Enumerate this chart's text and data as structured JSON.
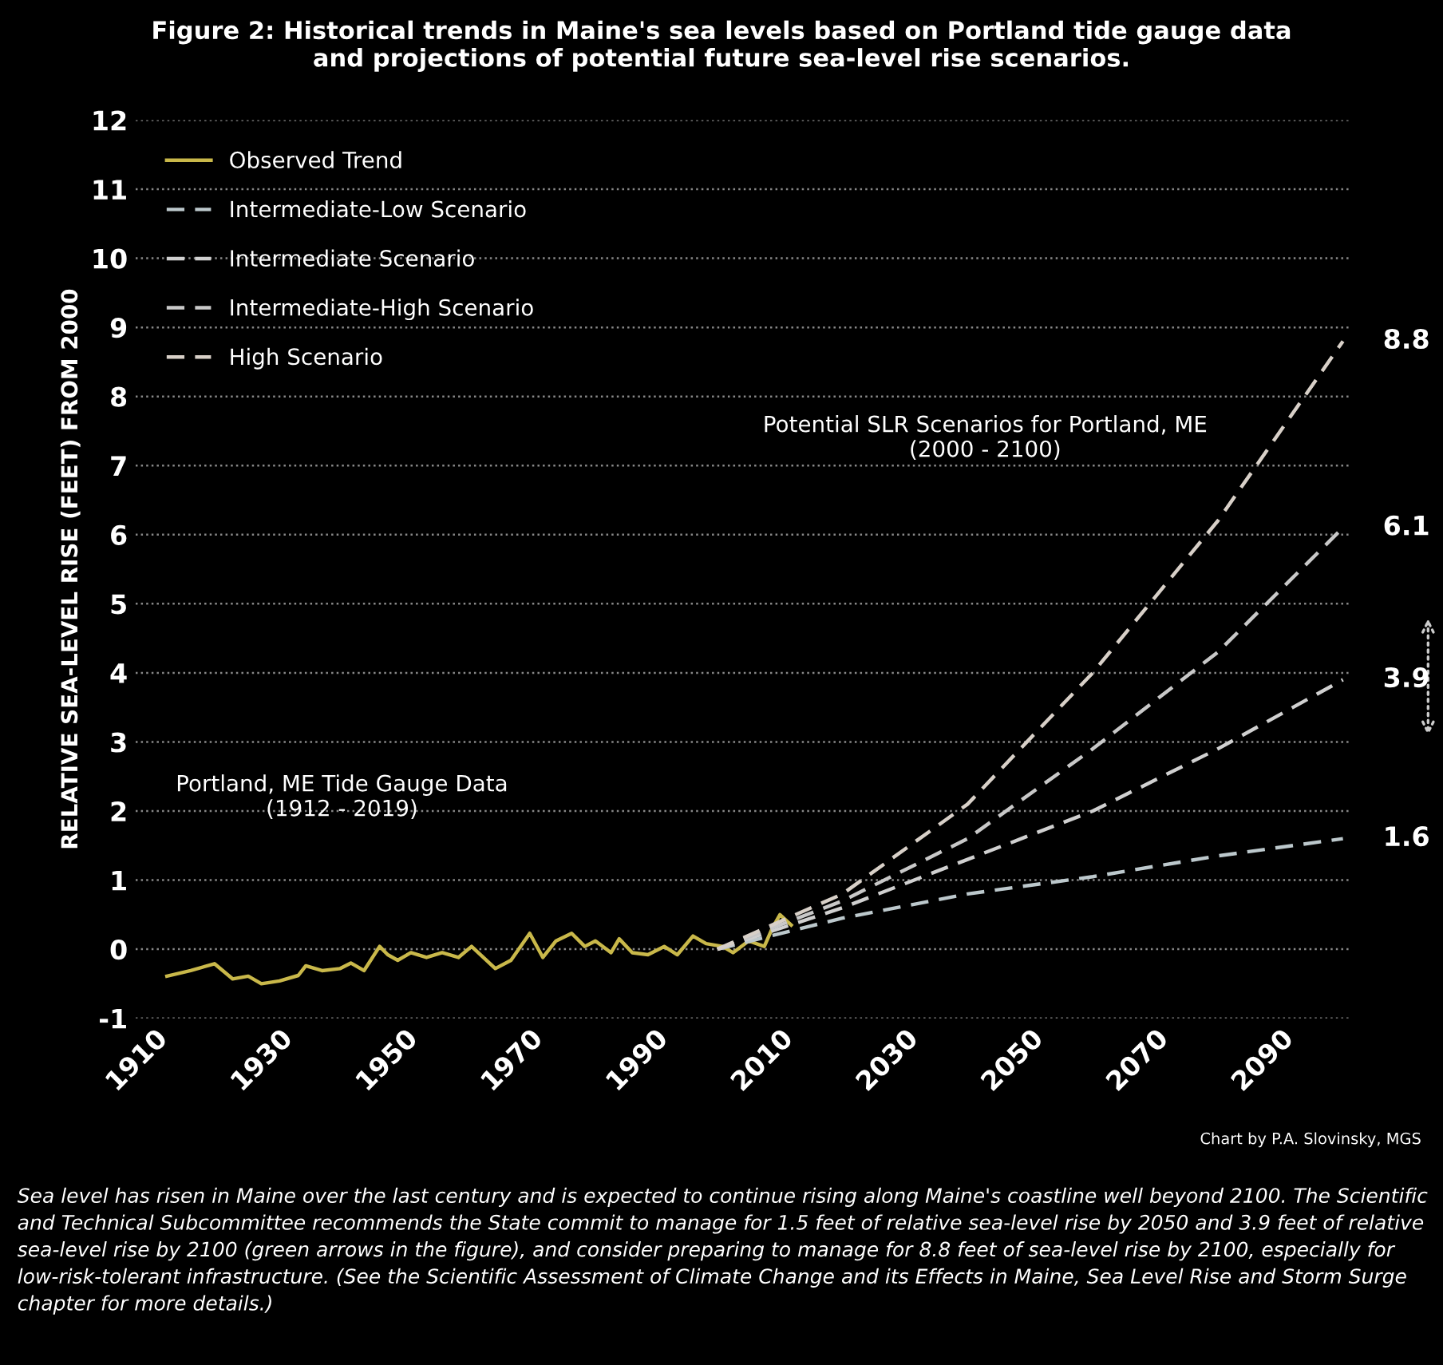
{
  "chart_data": {
    "type": "line",
    "title": "Figure 2: Historical trends in Maine's sea levels based on Portland tide gauge data\nand projections of potential future sea-level rise scenarios.",
    "ylabel": "RELATIVE SEA-LEVEL RISE (FEET) FROM 2000",
    "xlim": [
      1907,
      2101
    ],
    "xticks": [
      1910,
      1930,
      1950,
      1970,
      1990,
      2010,
      2030,
      2050,
      2070,
      2090
    ],
    "ylim": [
      -1,
      12
    ],
    "yticks": [
      -1,
      0,
      1,
      2,
      3,
      4,
      5,
      6,
      7,
      8,
      9,
      10,
      11,
      12
    ],
    "grid": "y",
    "legend": "top left",
    "series": [
      {
        "name": "Observed Trend",
        "color": "#c9b84a",
        "line_style": "solid",
        "x": [
          1912,
          1915.8,
          1919.6,
          1922.5,
          1925,
          1927.1,
          1930,
          1933,
          1934.2,
          1936.8,
          1939.7,
          1941.4,
          1943.5,
          1946,
          1947.3,
          1948.9,
          1951,
          1953.5,
          1956,
          1958.6,
          1960.7,
          1964.5,
          1967,
          1970,
          1972.1,
          1974.2,
          1976.7,
          1978.8,
          1980.5,
          1983,
          1984.3,
          1986.4,
          1988.9,
          1991.5,
          1993.6,
          1996.1,
          1998.2,
          2000.8,
          2002.5,
          2005,
          2007.5,
          2008.8,
          2010,
          2011.8
        ],
        "values": [
          -0.39,
          -0.31,
          -0.21,
          -0.43,
          -0.39,
          -0.5,
          -0.46,
          -0.38,
          -0.24,
          -0.31,
          -0.28,
          -0.2,
          -0.31,
          0.04,
          -0.08,
          -0.16,
          -0.05,
          -0.12,
          -0.05,
          -0.12,
          0.04,
          -0.28,
          -0.16,
          0.23,
          -0.12,
          0.12,
          0.23,
          0.04,
          0.12,
          -0.05,
          0.15,
          -0.05,
          -0.08,
          0.04,
          -0.08,
          0.19,
          0.08,
          0.04,
          -0.05,
          0.12,
          0.04,
          0.31,
          0.5,
          0.35
        ]
      },
      {
        "name": "Intermediate-Low Scenario",
        "color": "#bcc8cc",
        "line_style": "dashed",
        "x": [
          2000,
          2020,
          2040,
          2060,
          2080,
          2100
        ],
        "values": [
          0,
          0.45,
          0.8,
          1.05,
          1.35,
          1.6
        ],
        "value_labels": [
          null,
          null,
          null,
          null,
          null,
          "1.6"
        ]
      },
      {
        "name": "Intermediate Scenario",
        "color": "#d0d0d0",
        "line_style": "dashed",
        "x": [
          2000,
          2020,
          2040,
          2060,
          2080,
          2100
        ],
        "values": [
          0,
          0.6,
          1.3,
          2.0,
          2.9,
          3.9
        ],
        "value_labels": [
          null,
          null,
          null,
          null,
          null,
          "3.9"
        ]
      },
      {
        "name": "Intermediate-High Scenario",
        "color": "#c8c8c8",
        "line_style": "dashed",
        "x": [
          2000,
          2020,
          2040,
          2060,
          2080,
          2100
        ],
        "values": [
          0,
          0.7,
          1.6,
          2.9,
          4.3,
          6.1
        ],
        "value_labels": [
          null,
          null,
          null,
          null,
          null,
          "6.1"
        ]
      },
      {
        "name": "High Scenario",
        "color": "#d8d0c8",
        "line_style": "dashed",
        "x": [
          2000,
          2020,
          2040,
          2060,
          2080,
          2100
        ],
        "values": [
          0,
          0.8,
          2.1,
          4.0,
          6.2,
          8.8
        ],
        "value_labels": [
          null,
          null,
          null,
          null,
          null,
          "8.8"
        ]
      }
    ],
    "annotations": [
      "Portland, ME Tide Gauge Data\n(1912 - 2019)",
      "Potential SLR Scenarios for Portland, ME\n(2000 - 2100)",
      "Chart by P.A. Slovinsky, MGS",
      "Sea level has risen in Maine over the last century and is expected to continue rising along Maine's coastline well beyond 2100. The Scientific and Technical Subcommittee recommends the State commit to manage for 1.5 feet of relative sea-level rise by 2050 and 3.9 feet of relative sea-level rise by 2100 (green arrows in the figure), and consider preparing to manage for 8.8 feet of sea-level rise by 2100, especially for low-risk-tolerant infrastructure. (See the Scientific Assessment of Climate Change and its Effects in Maine, Sea Level Rise and Storm Surge chapter for more details.)"
    ]
  }
}
